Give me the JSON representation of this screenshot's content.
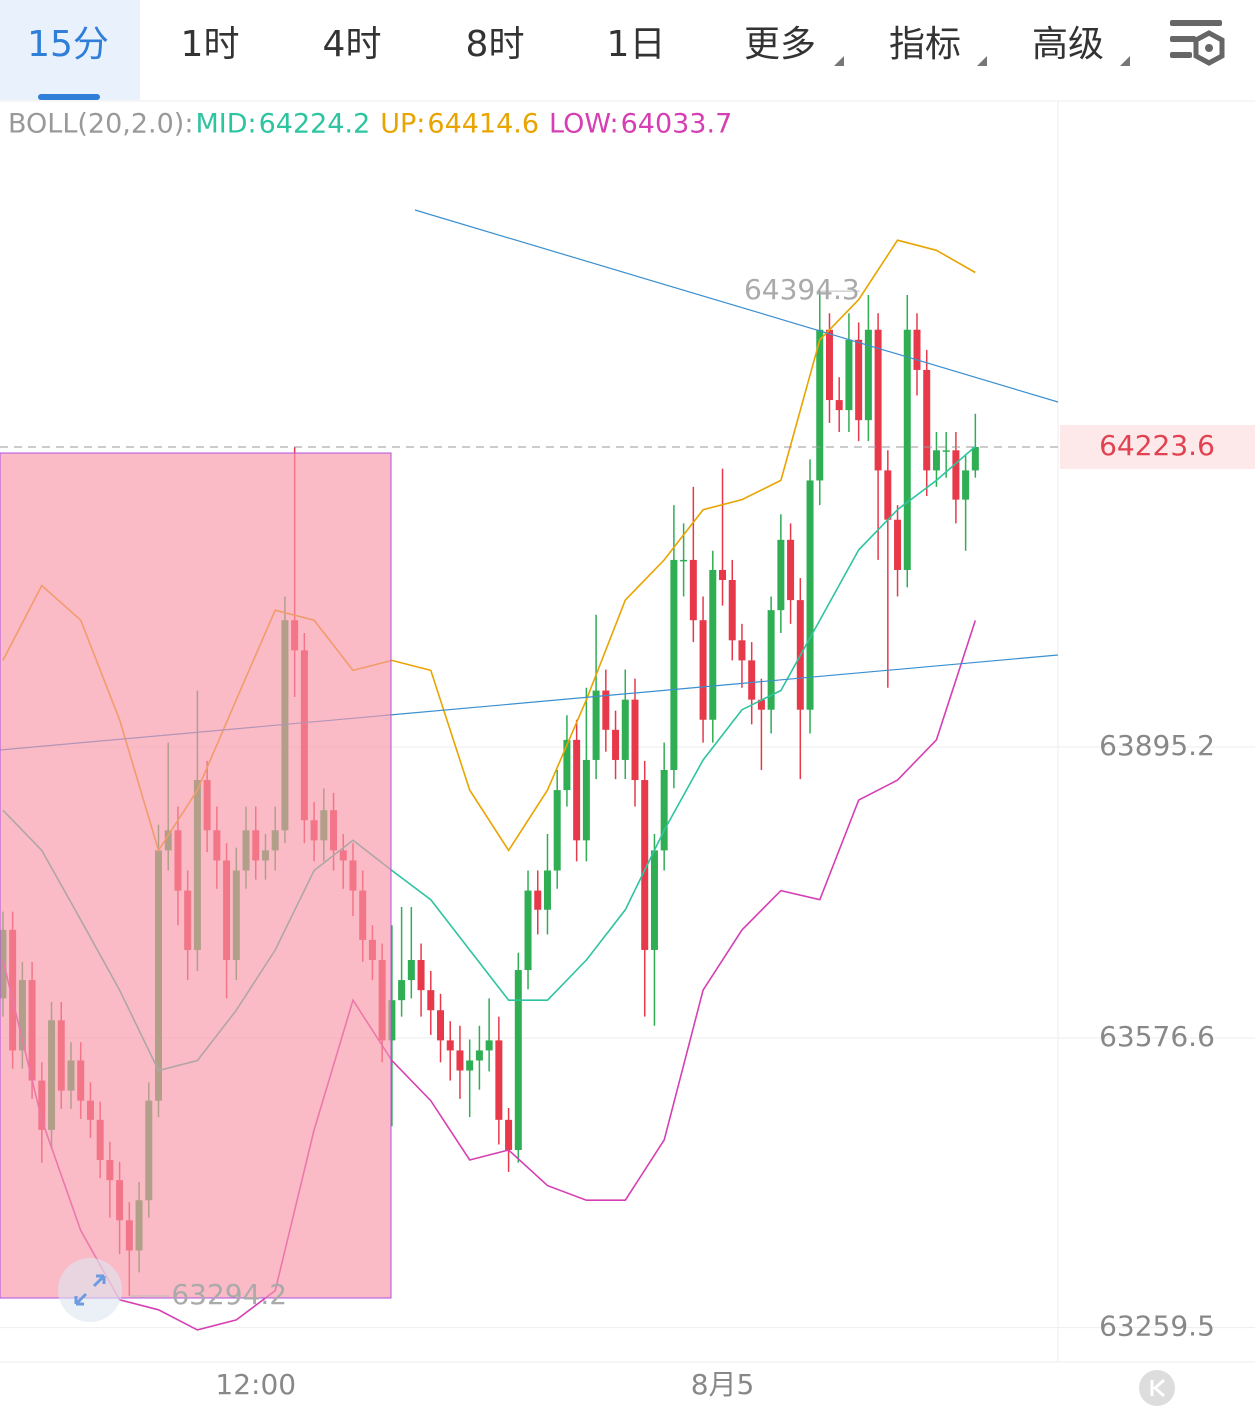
{
  "tabs": {
    "items": [
      "15分",
      "1时",
      "4时",
      "8时",
      "1日",
      "更多",
      "指标",
      "高级"
    ],
    "active": 0
  },
  "chart_data": {
    "type": "candlestick",
    "indicator": "BOLL(20,2.0):",
    "up_color": "#2fae54",
    "down_color": "#e8394b",
    "open": [
      63620,
      63695,
      63563,
      63640,
      63530,
      63476,
      63596,
      63519,
      63552,
      63508,
      63487,
      63443,
      63421,
      63377,
      63344,
      63399,
      63508,
      63782,
      63804,
      63738,
      63673,
      63859,
      63804,
      63771,
      63662,
      63760,
      63804,
      63771,
      63782,
      63804,
      64034,
      64001,
      63815,
      63793,
      63826,
      63782,
      63771,
      63738,
      63684,
      63662,
      63574,
      63618,
      63640,
      63662,
      63629,
      63607,
      63574,
      63563,
      63541,
      63552,
      63563,
      63574,
      63487,
      63454,
      63651,
      63738,
      63717,
      63760,
      63848,
      63903,
      63793,
      63881,
      63957,
      63914,
      63881,
      63947,
      63859,
      63673,
      63782,
      63870,
      64100,
      64100,
      64034,
      63925,
      64089,
      64078,
      64012,
      63990,
      63947,
      63936,
      64045,
      64122,
      64056,
      63936,
      64187,
      64352,
      64275,
      64264,
      64341,
      64253,
      64352,
      64198,
      64144,
      64089,
      64352,
      64308,
      64198,
      64220,
      64220,
      64166,
      64198
    ],
    "high": [
      63715,
      63715,
      63660,
      63660,
      63550,
      63616,
      63616,
      63572,
      63572,
      63528,
      63507,
      63463,
      63441,
      63397,
      63419,
      63528,
      63810,
      63900,
      63830,
      63760,
      63957,
      63880,
      63830,
      63790,
      63785,
      63830,
      63830,
      63800,
      63830,
      64060,
      64223,
      64020,
      63835,
      63850,
      63845,
      63800,
      63790,
      63760,
      63700,
      63680,
      63700,
      63720,
      63720,
      63680,
      63650,
      63625,
      63595,
      63590,
      63575,
      63590,
      63620,
      63600,
      63500,
      63670,
      63760,
      63760,
      63800,
      63870,
      63930,
      63925,
      63960,
      64040,
      63980,
      63935,
      63980,
      63970,
      63880,
      63800,
      63900,
      64160,
      64140,
      64180,
      64060,
      64110,
      64200,
      64100,
      64030,
      64010,
      63970,
      64060,
      64150,
      64140,
      64080,
      64210,
      64394.3,
      64370,
      64300,
      64370,
      64360,
      64390,
      64370,
      64220,
      64160,
      64390,
      64370,
      64330,
      64240,
      64240,
      64240,
      64215,
      64260
    ],
    "low": [
      63600,
      63543,
      63543,
      63510,
      63440,
      63456,
      63499,
      63499,
      63488,
      63467,
      63423,
      63380,
      63340,
      63294.2,
      63320,
      63380,
      63490,
      63760,
      63700,
      63640,
      63650,
      63780,
      63740,
      63620,
      63640,
      63740,
      63750,
      63750,
      63760,
      63790,
      63950,
      63790,
      63770,
      63770,
      63760,
      63740,
      63710,
      63660,
      63640,
      63550,
      63480,
      63600,
      63620,
      63600,
      63580,
      63550,
      63530,
      63510,
      63490,
      63520,
      63540,
      63460,
      63430,
      63440,
      63630,
      63690,
      63690,
      63740,
      63830,
      63770,
      63770,
      63860,
      63890,
      63860,
      63860,
      63830,
      63600,
      63590,
      63760,
      63850,
      64060,
      64010,
      63900,
      63900,
      64050,
      63990,
      63960,
      63920,
      63870,
      63910,
      64020,
      64030,
      63860,
      63910,
      64160,
      64250,
      64240,
      64240,
      64230,
      64230,
      64100,
      63960,
      64060,
      64070,
      64280,
      64170,
      64180,
      64190,
      64140,
      64110,
      64190
    ],
    "close": [
      63695,
      63563,
      63640,
      63530,
      63476,
      63596,
      63519,
      63552,
      63508,
      63487,
      63443,
      63421,
      63377,
      63344,
      63399,
      63508,
      63782,
      63804,
      63738,
      63673,
      63859,
      63804,
      63771,
      63662,
      63760,
      63804,
      63771,
      63782,
      63804,
      64034,
      64001,
      63815,
      63793,
      63826,
      63782,
      63771,
      63738,
      63684,
      63662,
      63574,
      63618,
      63640,
      63662,
      63629,
      63607,
      63574,
      63563,
      63541,
      63552,
      63563,
      63574,
      63487,
      63454,
      63651,
      63738,
      63717,
      63760,
      63848,
      63903,
      63793,
      63881,
      63957,
      63914,
      63881,
      63947,
      63859,
      63673,
      63782,
      63870,
      64100,
      64100,
      64034,
      63925,
      64089,
      64078,
      64012,
      63990,
      63947,
      63936,
      64045,
      64122,
      64056,
      63936,
      64187,
      64352,
      64275,
      64264,
      64341,
      64253,
      64352,
      64198,
      64144,
      64089,
      64352,
      64308,
      64198,
      64220,
      64220,
      64166,
      64198,
      64223.6
    ],
    "band_x": [
      0,
      4,
      8,
      12,
      16,
      20,
      24,
      28,
      32,
      36,
      40,
      44,
      48,
      52,
      56,
      60,
      64,
      68,
      72,
      76,
      80,
      84,
      88,
      92,
      96,
      100
    ],
    "series": [
      {
        "name": "MID:",
        "color": "#2ec4a0",
        "values": [
          63826,
          63782,
          63706,
          63629,
          63541,
          63552,
          63607,
          63673,
          63760,
          63793,
          63760,
          63728,
          63673,
          63618,
          63618,
          63662,
          63717,
          63804,
          63881,
          63936,
          63957,
          64034,
          64111,
          64155,
          64187,
          64224.2
        ]
      },
      {
        "name": "UP:",
        "color": "#e8a400",
        "values": [
          63990,
          64072,
          64034,
          63925,
          63782,
          63848,
          63947,
          64045,
          64034,
          63979,
          63990,
          63979,
          63848,
          63782,
          63848,
          63947,
          64056,
          64100,
          64155,
          64166,
          64187,
          64341,
          64385,
          64450,
          64439,
          64414.6
        ]
      },
      {
        "name": "LOW:",
        "color": "#d63fb3",
        "values": [
          63662,
          63487,
          63366,
          63290,
          63279,
          63257,
          63268,
          63300,
          63476,
          63618,
          63552,
          63508,
          63443,
          63454,
          63415,
          63399,
          63399,
          63465,
          63629,
          63695,
          63738,
          63728,
          63837,
          63859,
          63903,
          64033.7
        ]
      }
    ],
    "xlim": [
      -0.3,
      108.5
    ],
    "x_labels": [
      {
        "value": 26,
        "label": "12:00"
      },
      {
        "value": 74,
        "label": "8月5"
      }
    ],
    "ylim": [
      63221.9,
      64603.5
    ],
    "yticks": [
      63259.5,
      63576.6,
      63895.2
    ],
    "grid": true
  }
}
